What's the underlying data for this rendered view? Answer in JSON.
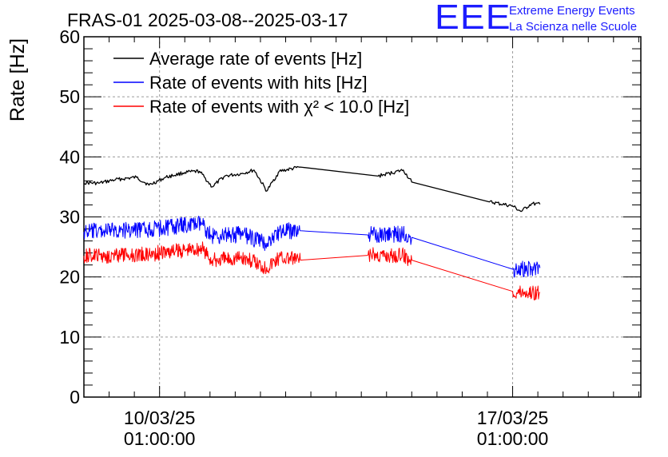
{
  "logo": {
    "mark": "EEE",
    "line1": "Extreme Energy Events",
    "line2": "La Scienza nelle Scuole"
  },
  "chart_data": {
    "type": "line",
    "title": "FRAS-01 2025-03-08--2025-03-17",
    "ylabel": "Rate [Hz]",
    "xlabel": "",
    "ylim": [
      0,
      60
    ],
    "yticks": [
      0,
      10,
      20,
      30,
      40,
      50,
      60
    ],
    "xlim": [
      "2025-03-08 13:00",
      "2025-03-19 14:00"
    ],
    "xticks": [
      {
        "date": "2025-03-10 01:00",
        "label1": "10/03/25",
        "label2": "01:00:00"
      },
      {
        "date": "2025-03-17 01:00",
        "label1": "17/03/25",
        "label2": "01:00:00"
      }
    ],
    "grid": true,
    "legend_position": "top-left",
    "series": [
      {
        "name": "Average rate of events [Hz]",
        "color": "#000000",
        "noise": 0.3,
        "points": [
          [
            "2025-03-08 13:00",
            35.7
          ],
          [
            "2025-03-08 20:00",
            35.6
          ],
          [
            "2025-03-09 04:00",
            36.2
          ],
          [
            "2025-03-09 14:00",
            36.6
          ],
          [
            "2025-03-09 20:00",
            35.3
          ],
          [
            "2025-03-10 04:00",
            36.6
          ],
          [
            "2025-03-10 13:00",
            37.4
          ],
          [
            "2025-03-10 20:00",
            37.6
          ],
          [
            "2025-03-11 02:00",
            35.0
          ],
          [
            "2025-03-11 08:00",
            36.8
          ],
          [
            "2025-03-11 16:00",
            37.2
          ],
          [
            "2025-03-11 22:00",
            37.8
          ],
          [
            "2025-03-12 04:00",
            34.3
          ],
          [
            "2025-03-12 10:00",
            37.6
          ],
          [
            "2025-03-12 20:00",
            38.3
          ],
          [
            "2025-03-14 09:00",
            36.8
          ],
          [
            "2025-03-14 21:00",
            37.8
          ],
          [
            "2025-03-15 01:00",
            35.8
          ],
          [
            "2025-03-16 14:00",
            32.5
          ],
          [
            "2025-03-17 01:00",
            31.8
          ],
          [
            "2025-03-17 05:00",
            30.9
          ],
          [
            "2025-03-17 10:00",
            32.2
          ],
          [
            "2025-03-17 14:00",
            32.1
          ]
        ]
      },
      {
        "name": "Rate of events with hits [Hz]",
        "color": "#0000ff",
        "noise": 1.4,
        "points": [
          [
            "2025-03-08 13:00",
            27.5
          ],
          [
            "2025-03-09 04:00",
            27.8
          ],
          [
            "2025-03-09 20:00",
            27.9
          ],
          [
            "2025-03-10 13:00",
            28.6
          ],
          [
            "2025-03-10 21:00",
            28.8
          ],
          [
            "2025-03-11 02:00",
            26.8
          ],
          [
            "2025-03-11 16:00",
            27.1
          ],
          [
            "2025-03-12 04:00",
            25.6
          ],
          [
            "2025-03-12 10:00",
            27.6
          ],
          [
            "2025-03-12 20:00",
            27.7
          ],
          [
            "2025-03-14 04:00",
            27.0
          ],
          [
            "2025-03-14 21:00",
            27.2
          ],
          [
            "2025-03-15 01:00",
            26.6
          ],
          [
            "2025-03-17 01:00",
            21.3
          ],
          [
            "2025-03-17 14:00",
            21.5
          ]
        ]
      },
      {
        "name": "Rate of events with χ² < 10.0 [Hz]",
        "color": "#ff0000",
        "noise": 1.3,
        "points": [
          [
            "2025-03-08 13:00",
            23.5
          ],
          [
            "2025-03-09 04:00",
            23.6
          ],
          [
            "2025-03-09 20:00",
            23.8
          ],
          [
            "2025-03-10 13:00",
            24.5
          ],
          [
            "2025-03-10 21:00",
            24.8
          ],
          [
            "2025-03-11 02:00",
            22.7
          ],
          [
            "2025-03-11 16:00",
            23.3
          ],
          [
            "2025-03-12 04:00",
            21.6
          ],
          [
            "2025-03-12 10:00",
            23.3
          ],
          [
            "2025-03-12 20:00",
            22.8
          ],
          [
            "2025-03-14 04:00",
            23.6
          ],
          [
            "2025-03-14 21:00",
            23.6
          ],
          [
            "2025-03-15 01:00",
            22.8
          ],
          [
            "2025-03-17 01:00",
            17.6
          ],
          [
            "2025-03-17 14:00",
            17.4
          ]
        ]
      }
    ]
  }
}
